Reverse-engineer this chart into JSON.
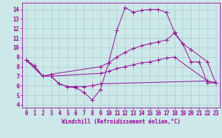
{
  "xlabel": "Windchill (Refroidissement éolien,°C)",
  "background_color": "#cce8e8",
  "line_color": "#990099",
  "grid_color": "#aacccc",
  "xlim": [
    -0.5,
    23.5
  ],
  "ylim": [
    3.7,
    14.7
  ],
  "yticks": [
    4,
    5,
    6,
    7,
    8,
    9,
    10,
    11,
    12,
    13,
    14
  ],
  "xticks": [
    0,
    1,
    2,
    3,
    4,
    5,
    6,
    7,
    8,
    9,
    10,
    11,
    12,
    13,
    14,
    15,
    16,
    17,
    18,
    19,
    20,
    21,
    22,
    23
  ],
  "line1_x": [
    0,
    1,
    2,
    3,
    4,
    5,
    6,
    7,
    8,
    9,
    10,
    11,
    12,
    13,
    14,
    15,
    16,
    17,
    18,
    19,
    20,
    21,
    22,
    23
  ],
  "line1_y": [
    8.7,
    8.1,
    7.0,
    7.0,
    6.2,
    5.9,
    5.8,
    5.3,
    4.5,
    5.6,
    8.4,
    11.8,
    14.2,
    13.7,
    13.9,
    14.0,
    14.0,
    13.7,
    11.6,
    10.4,
    8.5,
    8.5,
    6.3,
    6.3
  ],
  "line2_x": [
    0,
    2,
    3,
    9,
    10,
    11,
    12,
    13,
    14,
    15,
    16,
    17,
    18,
    19,
    20,
    22,
    23
  ],
  "line2_y": [
    8.7,
    7.0,
    7.2,
    8.0,
    8.4,
    9.0,
    9.5,
    9.9,
    10.2,
    10.4,
    10.6,
    10.8,
    11.5,
    10.4,
    9.8,
    8.5,
    6.3
  ],
  "line3_x": [
    0,
    2,
    3,
    9,
    10,
    11,
    12,
    13,
    14,
    15,
    16,
    17,
    18,
    22,
    23
  ],
  "line3_y": [
    8.7,
    7.0,
    7.0,
    7.3,
    7.5,
    7.8,
    8.0,
    8.2,
    8.4,
    8.5,
    8.7,
    8.9,
    9.0,
    6.5,
    6.3
  ],
  "line4_x": [
    0,
    2,
    3,
    4,
    5,
    6,
    7,
    8,
    9,
    22,
    23
  ],
  "line4_y": [
    8.7,
    7.0,
    7.0,
    6.2,
    5.9,
    5.9,
    5.9,
    6.0,
    6.2,
    6.5,
    6.3
  ],
  "marker_size": 2.5,
  "lw": 0.7,
  "font_size": 5.5,
  "tick_font_size": 5.5
}
